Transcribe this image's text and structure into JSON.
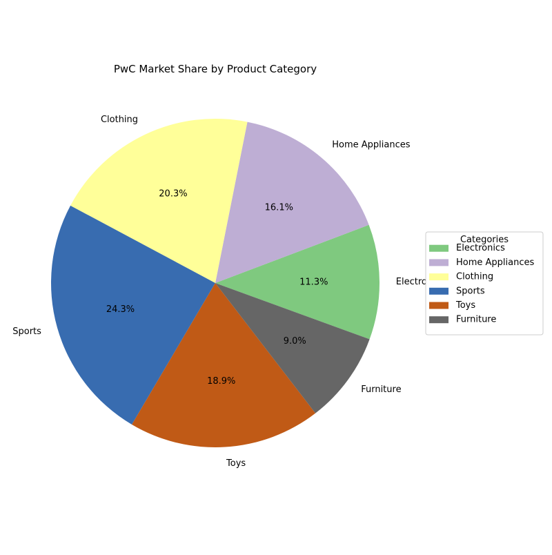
{
  "chart_data": {
    "type": "pie",
    "title": "PwC Market Share by Product Category",
    "categories": [
      "Electronics",
      "Home Appliances",
      "Clothing",
      "Sports",
      "Toys",
      "Furniture"
    ],
    "values": [
      11.3,
      16.1,
      20.3,
      24.3,
      18.9,
      9.0
    ],
    "value_labels": [
      "11.3%",
      "16.1%",
      "20.3%",
      "24.3%",
      "18.9%",
      "9.0%"
    ],
    "colors": [
      "#7fc97f",
      "#beaed4",
      "#ffff99",
      "#386cb0",
      "#c05a16",
      "#666666"
    ],
    "start_angle_deg": -20,
    "direction": "counterclockwise",
    "legend": {
      "title": "Categories",
      "placement": "center-right",
      "entries": [
        "Electronics",
        "Home Appliances",
        "Clothing",
        "Sports",
        "Toys",
        "Furniture"
      ]
    }
  }
}
